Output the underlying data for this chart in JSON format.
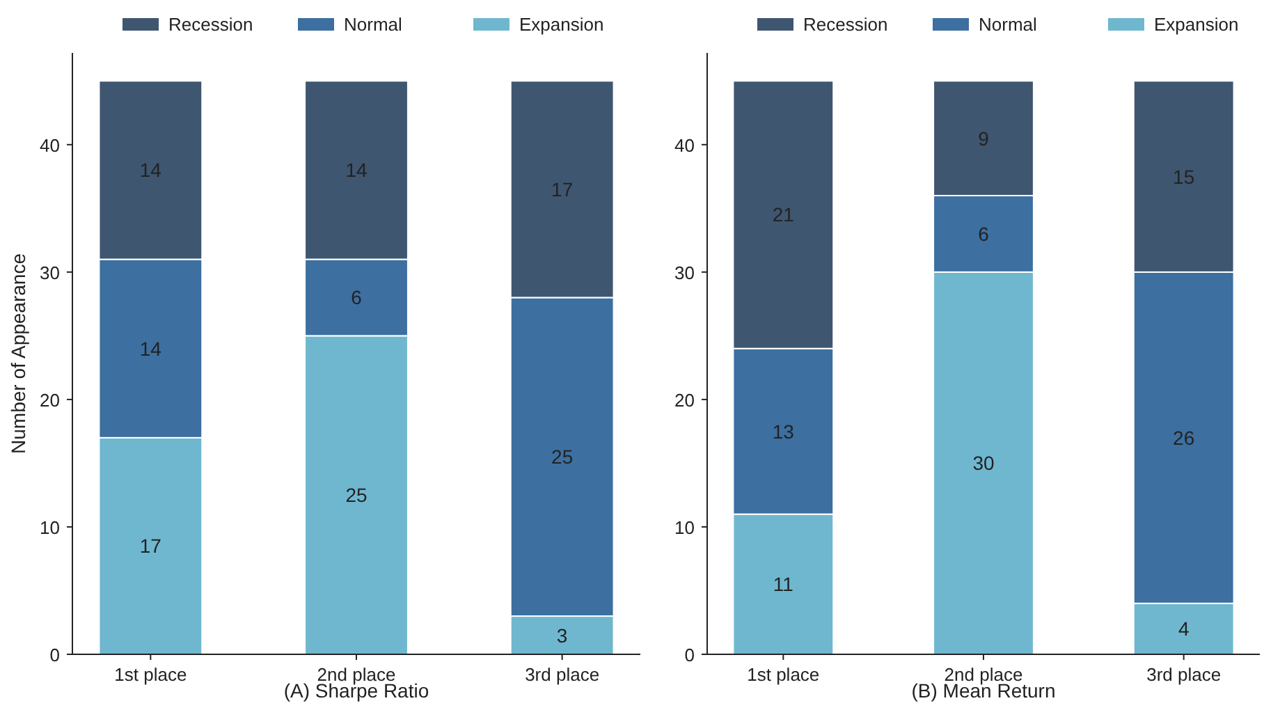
{
  "chart_data": [
    {
      "type": "bar",
      "xlabel": "(A) Sharpe Ratio",
      "ylabel": "Number of Appearance",
      "categories": [
        "1st place",
        "2nd place",
        "3rd place"
      ],
      "stacked": true,
      "data_labels": true,
      "legend": "top",
      "grid": false,
      "ylim": [
        0,
        47.2
      ],
      "yticks": [
        0,
        10,
        20,
        30,
        40
      ],
      "series": [
        {
          "name": "Expansion",
          "color": "#6fb7cf",
          "values": [
            17,
            25,
            3
          ]
        },
        {
          "name": "Normal",
          "color": "#3d6fa0",
          "values": [
            14,
            6,
            25
          ]
        },
        {
          "name": "Recession",
          "color": "#3f5670",
          "values": [
            14,
            14,
            17
          ]
        }
      ]
    },
    {
      "type": "bar",
      "xlabel": "(B) Mean Return",
      "categories": [
        "1st place",
        "2nd place",
        "3rd place"
      ],
      "stacked": true,
      "data_labels": true,
      "legend": "top",
      "grid": false,
      "ylim": [
        0,
        47.2
      ],
      "yticks": [
        0,
        10,
        20,
        30,
        40
      ],
      "series": [
        {
          "name": "Expansion",
          "color": "#6fb7cf",
          "values": [
            11,
            30,
            4
          ]
        },
        {
          "name": "Normal",
          "color": "#3d6fa0",
          "values": [
            13,
            6,
            26
          ]
        },
        {
          "name": "Recession",
          "color": "#3f5670",
          "values": [
            21,
            9,
            15
          ]
        }
      ]
    }
  ]
}
